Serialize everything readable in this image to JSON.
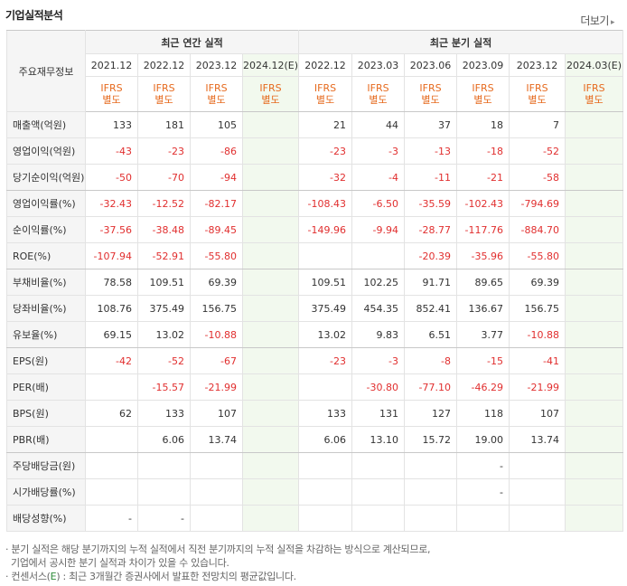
{
  "header": {
    "title": "기업실적분석",
    "more_label": "더보기"
  },
  "table": {
    "row_header_label": "주요재무정보",
    "annual_group_label": "최근 연간 실적",
    "quarter_group_label": "최근 분기 실적",
    "annual_periods": [
      "2021.12",
      "2022.12",
      "2023.12",
      "2024.12(E)"
    ],
    "quarter_periods": [
      "2022.12",
      "2023.03",
      "2023.06",
      "2023.09",
      "2023.12",
      "2024.03(E)"
    ],
    "ifrs_line1": "IFRS",
    "ifrs_line2": "별도",
    "rows": [
      {
        "label": "매출액(억원)",
        "values": [
          "133",
          "181",
          "105",
          "",
          "21",
          "44",
          "37",
          "18",
          "7",
          ""
        ]
      },
      {
        "label": "영업이익(억원)",
        "values": [
          "-43",
          "-23",
          "-86",
          "",
          "-23",
          "-3",
          "-13",
          "-18",
          "-52",
          ""
        ]
      },
      {
        "label": "당기순이익(억원)",
        "values": [
          "-50",
          "-70",
          "-94",
          "",
          "-32",
          "-4",
          "-11",
          "-21",
          "-58",
          ""
        ]
      },
      {
        "label": "영업이익률(%)",
        "values": [
          "-32.43",
          "-12.52",
          "-82.17",
          "",
          "-108.43",
          "-6.50",
          "-35.59",
          "-102.43",
          "-794.69",
          ""
        ]
      },
      {
        "label": "순이익률(%)",
        "values": [
          "-37.56",
          "-38.48",
          "-89.45",
          "",
          "-149.96",
          "-9.94",
          "-28.77",
          "-117.76",
          "-884.70",
          ""
        ]
      },
      {
        "label": "ROE(%)",
        "values": [
          "-107.94",
          "-52.91",
          "-55.80",
          "",
          "",
          "",
          "-20.39",
          "-35.96",
          "-55.80",
          ""
        ]
      },
      {
        "label": "부채비율(%)",
        "values": [
          "78.58",
          "109.51",
          "69.39",
          "",
          "109.51",
          "102.25",
          "91.71",
          "89.65",
          "69.39",
          ""
        ]
      },
      {
        "label": "당좌비율(%)",
        "values": [
          "108.76",
          "375.49",
          "156.75",
          "",
          "375.49",
          "454.35",
          "852.41",
          "136.67",
          "156.75",
          ""
        ]
      },
      {
        "label": "유보율(%)",
        "values": [
          "69.15",
          "13.02",
          "-10.88",
          "",
          "13.02",
          "9.83",
          "6.51",
          "3.77",
          "-10.88",
          ""
        ]
      },
      {
        "label": "EPS(원)",
        "values": [
          "-42",
          "-52",
          "-67",
          "",
          "-23",
          "-3",
          "-8",
          "-15",
          "-41",
          ""
        ]
      },
      {
        "label": "PER(배)",
        "values": [
          "",
          "-15.57",
          "-21.99",
          "",
          "",
          "-30.80",
          "-77.10",
          "-46.29",
          "-21.99",
          ""
        ]
      },
      {
        "label": "BPS(원)",
        "values": [
          "62",
          "133",
          "107",
          "",
          "133",
          "131",
          "127",
          "118",
          "107",
          ""
        ]
      },
      {
        "label": "PBR(배)",
        "values": [
          "",
          "6.06",
          "13.74",
          "",
          "6.06",
          "13.10",
          "15.72",
          "19.00",
          "13.74",
          ""
        ]
      },
      {
        "label": "주당배당금(원)",
        "values": [
          "",
          "",
          "",
          "",
          "",
          "",
          "",
          "-",
          "",
          ""
        ]
      },
      {
        "label": "시가배당률(%)",
        "values": [
          "",
          "",
          "",
          "",
          "",
          "",
          "",
          "-",
          "",
          ""
        ]
      },
      {
        "label": "배당성향(%)",
        "values": [
          "-",
          "-",
          "",
          "",
          "",
          "",
          "",
          "",
          "",
          ""
        ]
      }
    ]
  },
  "notes": {
    "line1": "· 분기 실적은 해당 분기까지의 누적 실적에서 직전 분기까지의 누적 실적을 차감하는 방식으로 계산되므로,",
    "line2": "기업에서 공시한 분기 실적과 차이가 있을 수 있습니다.",
    "line3_prefix": "· 컨센서스(",
    "line3_e": "E",
    "line3_suffix": ") : 최근 3개월간 증권사에서 발표한 전망치의 평균값입니다."
  }
}
